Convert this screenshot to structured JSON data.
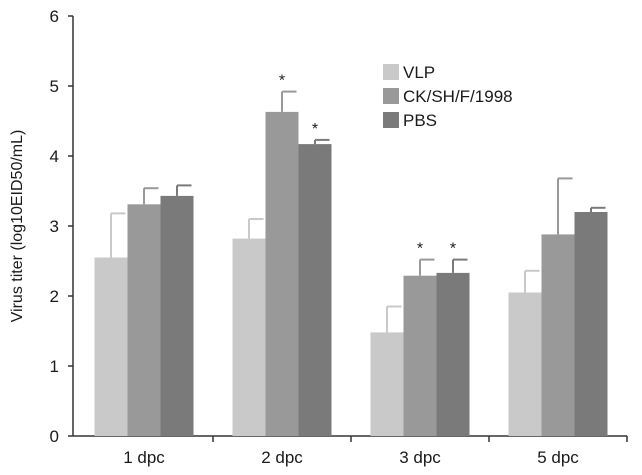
{
  "chart_data": {
    "type": "bar",
    "title": "",
    "xlabel": "",
    "ylabel": "Virus titer (log10EID50/mL)",
    "ylim": [
      0,
      6
    ],
    "yticks": [
      "0",
      "1",
      "2",
      "3",
      "4",
      "5",
      "6"
    ],
    "categories": [
      "1 dpc",
      "2 dpc",
      "3 dpc",
      "5 dpc"
    ],
    "series": [
      {
        "name": "VLP",
        "color": "#c9c9c9",
        "values": [
          2.55,
          2.82,
          1.48,
          2.05
        ],
        "errors": [
          0.63,
          0.28,
          0.37,
          0.31
        ]
      },
      {
        "name": "CK/SH/F/1998",
        "color": "#999999",
        "values": [
          3.31,
          4.63,
          2.29,
          2.88
        ],
        "errors": [
          0.23,
          0.29,
          0.23,
          0.8
        ]
      },
      {
        "name": "PBS",
        "color": "#7a7a7a",
        "values": [
          3.43,
          4.17,
          2.33,
          3.2
        ],
        "errors": [
          0.15,
          0.06,
          0.19,
          0.06
        ]
      }
    ],
    "significance": {
      "symbol": "*",
      "marks": [
        [
          1,
          1
        ],
        [
          1,
          2
        ],
        [
          2,
          1
        ],
        [
          2,
          2
        ]
      ]
    },
    "legend": {
      "position": "top-right"
    },
    "grid": false
  }
}
